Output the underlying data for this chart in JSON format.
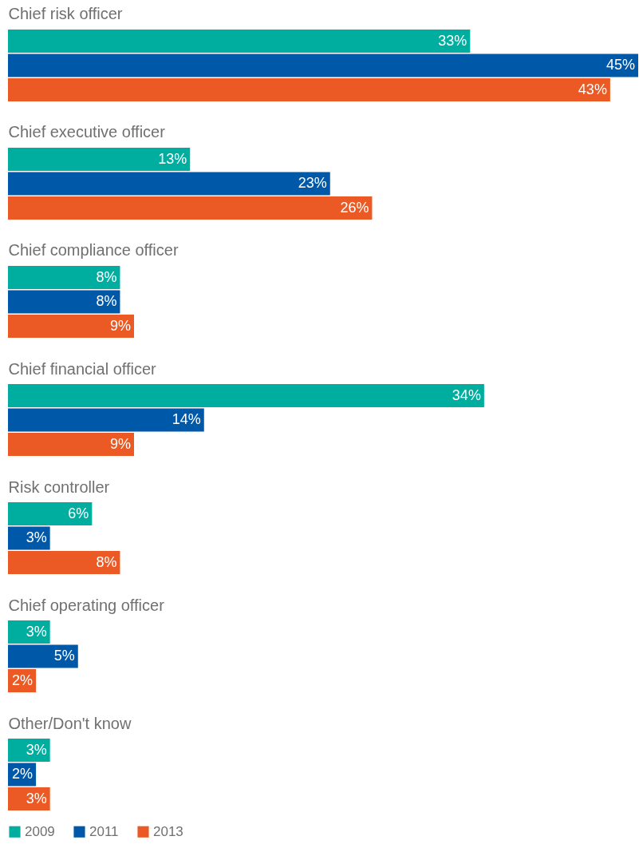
{
  "chart_data": {
    "type": "bar",
    "orientation": "horizontal",
    "legend": "bottom left",
    "categories": [
      "Chief risk officer",
      "Chief executive officer",
      "Chief compliance officer",
      "Chief financial officer",
      "Risk controller",
      "Chief operating officer",
      "Other/Don't know"
    ],
    "series": [
      {
        "name": "2009",
        "color": "#00aea0",
        "values": [
          33,
          13,
          8,
          34,
          6,
          3,
          3
        ],
        "value_labels": [
          "33%",
          "13%",
          "8%",
          "34%",
          "6%",
          "3%",
          "3%"
        ]
      },
      {
        "name": "2011",
        "color": "#0058a8",
        "values": [
          45,
          23,
          8,
          14,
          3,
          5,
          2
        ],
        "value_labels": [
          "45%",
          "23%",
          "8%",
          "14%",
          "3%",
          "5%",
          "2%"
        ]
      },
      {
        "name": "2013",
        "color": "#eb5a24",
        "values": [
          43,
          26,
          9,
          9,
          8,
          2,
          3
        ],
        "value_labels": [
          "43%",
          "26%",
          "9%",
          "9%",
          "8%",
          "2%",
          "3%"
        ]
      }
    ]
  }
}
